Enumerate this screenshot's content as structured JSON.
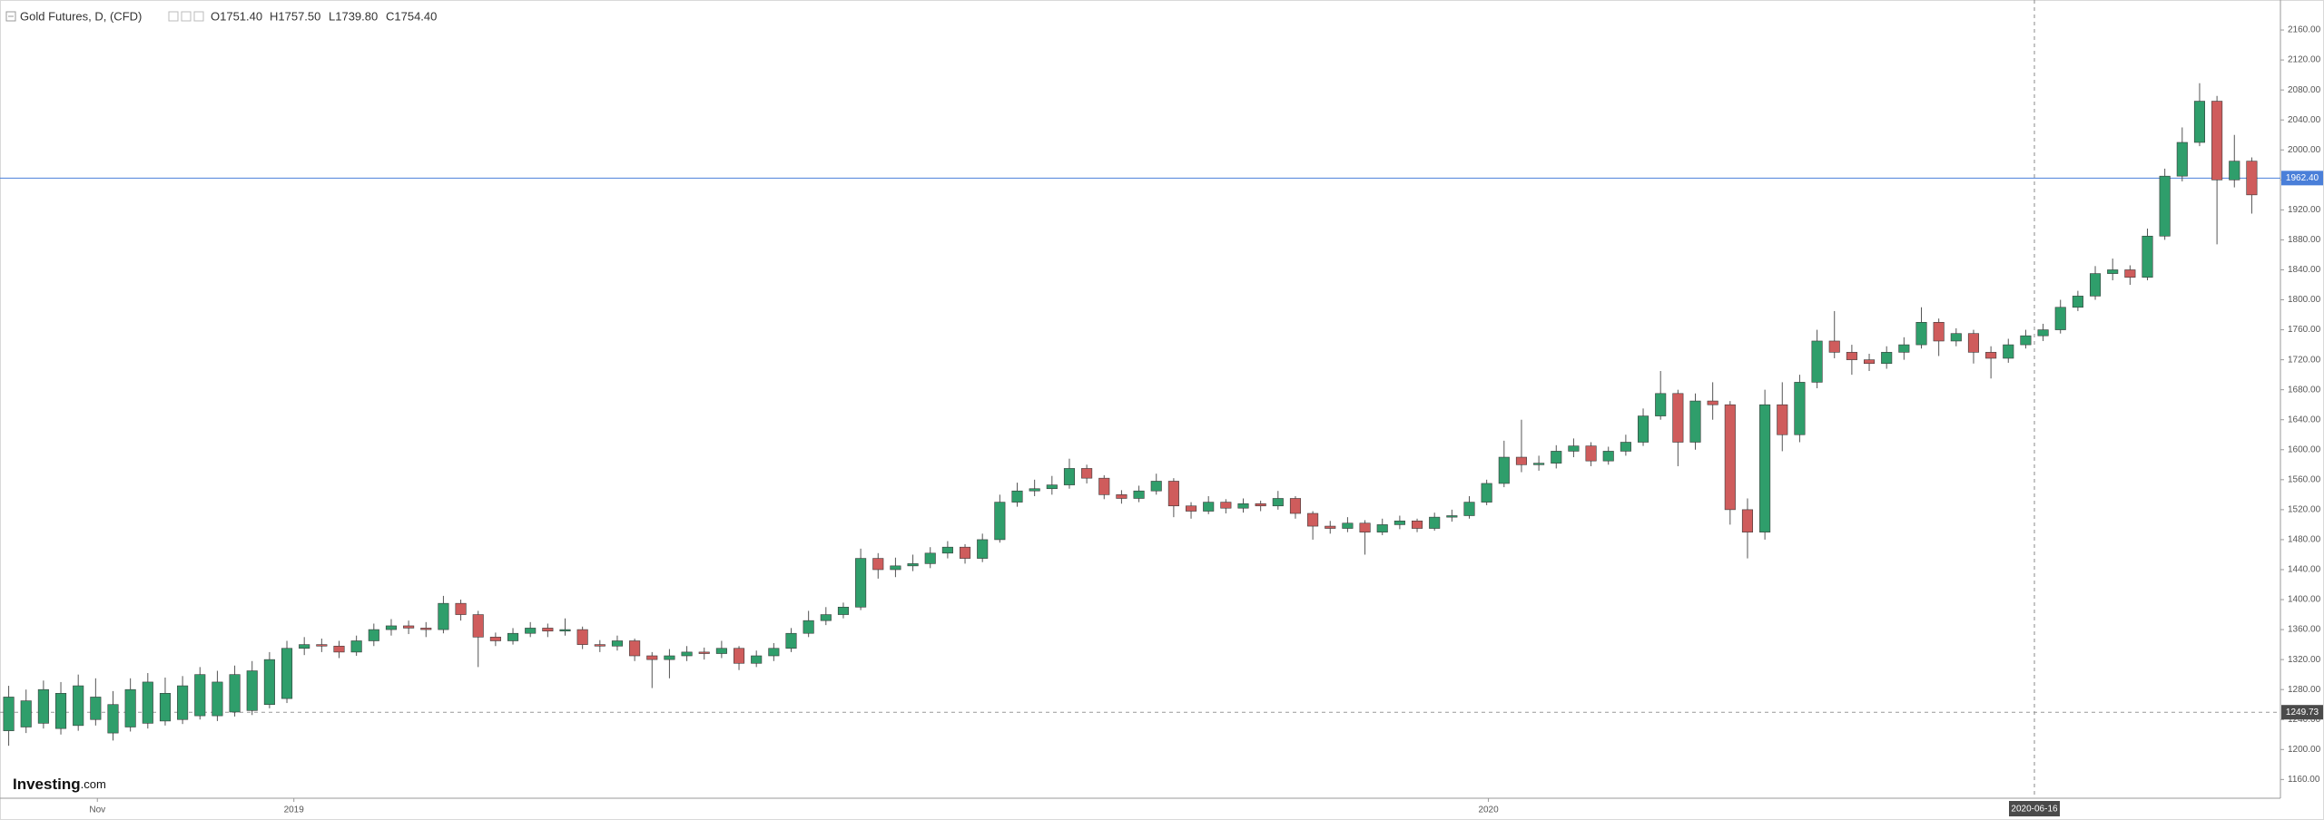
{
  "chart_data": {
    "type": "candlestick",
    "title": "Gold Futures, D, (CFD)",
    "header_values": [
      "O1751.40",
      "H1757.50",
      "L1739.80",
      "C1754.40"
    ],
    "watermark": [
      "Investing",
      ".com"
    ],
    "up_color": "#2f9e6b",
    "down_color": "#cf5c5c",
    "open": [
      1225,
      1230,
      1235,
      1228,
      1232,
      1240,
      1222,
      1230,
      1235,
      1238,
      1240,
      1245,
      1245,
      1250,
      1252,
      1260,
      1268,
      1335,
      1340,
      1338,
      1330,
      1345,
      1360,
      1365,
      1362,
      1360,
      1395,
      1380,
      1350,
      1345,
      1355,
      1362,
      1358,
      1360,
      1340,
      1338,
      1345,
      1325,
      1320,
      1325,
      1330,
      1328,
      1335,
      1315,
      1325,
      1335,
      1355,
      1372,
      1380,
      1390,
      1455,
      1440,
      1445,
      1448,
      1462,
      1470,
      1455,
      1480,
      1530,
      1545,
      1548,
      1553,
      1575,
      1562,
      1540,
      1535,
      1545,
      1558,
      1525,
      1518,
      1530,
      1522,
      1528,
      1525,
      1535,
      1515,
      1498,
      1495,
      1502,
      1490,
      1500,
      1505,
      1495,
      1510,
      1512,
      1530,
      1555,
      1590,
      1580,
      1582,
      1598,
      1605,
      1585,
      1598,
      1610,
      1645,
      1675,
      1610,
      1665,
      1660,
      1520,
      1490,
      1660,
      1620,
      1690,
      1745,
      1730,
      1720,
      1715,
      1730,
      1740,
      1770,
      1745,
      1755,
      1730,
      1722,
      1740,
      1752,
      1760,
      1790,
      1805,
      1835,
      1840,
      1830,
      1885,
      1965,
      2010,
      2065,
      1960,
      1985
    ],
    "high": [
      1285,
      1280,
      1292,
      1290,
      1300,
      1295,
      1278,
      1295,
      1302,
      1296,
      1298,
      1310,
      1305,
      1312,
      1318,
      1330,
      1345,
      1350,
      1348,
      1345,
      1352,
      1368,
      1374,
      1372,
      1370,
      1405,
      1400,
      1385,
      1356,
      1362,
      1370,
      1368,
      1375,
      1364,
      1346,
      1352,
      1348,
      1330,
      1334,
      1338,
      1336,
      1345,
      1338,
      1332,
      1342,
      1362,
      1385,
      1390,
      1396,
      1468,
      1462,
      1456,
      1460,
      1470,
      1478,
      1474,
      1488,
      1540,
      1556,
      1560,
      1565,
      1588,
      1580,
      1566,
      1546,
      1552,
      1568,
      1562,
      1530,
      1538,
      1534,
      1535,
      1532,
      1545,
      1538,
      1518,
      1505,
      1510,
      1506,
      1508,
      1512,
      1508,
      1516,
      1520,
      1538,
      1560,
      1612,
      1640,
      1592,
      1606,
      1615,
      1610,
      1604,
      1620,
      1655,
      1705,
      1680,
      1675,
      1690,
      1665,
      1535,
      1680,
      1690,
      1700,
      1760,
      1785,
      1740,
      1728,
      1738,
      1750,
      1790,
      1775,
      1762,
      1760,
      1738,
      1748,
      1760,
      1768,
      1800,
      1812,
      1845,
      1855,
      1846,
      1895,
      1975,
      2030,
      2089,
      2072,
      2020,
      1990
    ],
    "low": [
      1205,
      1222,
      1228,
      1220,
      1225,
      1232,
      1212,
      1224,
      1228,
      1232,
      1234,
      1240,
      1238,
      1244,
      1246,
      1255,
      1262,
      1326,
      1330,
      1322,
      1325,
      1338,
      1352,
      1354,
      1350,
      1355,
      1372,
      1310,
      1338,
      1340,
      1350,
      1350,
      1352,
      1334,
      1330,
      1332,
      1318,
      1282,
      1295,
      1318,
      1320,
      1322,
      1306,
      1310,
      1318,
      1330,
      1350,
      1366,
      1375,
      1386,
      1428,
      1430,
      1438,
      1442,
      1455,
      1448,
      1450,
      1476,
      1524,
      1538,
      1540,
      1548,
      1555,
      1534,
      1528,
      1530,
      1540,
      1510,
      1508,
      1514,
      1515,
      1516,
      1518,
      1520,
      1508,
      1480,
      1488,
      1490,
      1460,
      1486,
      1494,
      1490,
      1492,
      1504,
      1508,
      1526,
      1550,
      1570,
      1572,
      1575,
      1590,
      1578,
      1580,
      1592,
      1605,
      1640,
      1578,
      1600,
      1640,
      1500,
      1455,
      1480,
      1598,
      1610,
      1682,
      1722,
      1700,
      1705,
      1708,
      1720,
      1735,
      1725,
      1738,
      1715,
      1695,
      1716,
      1735,
      1745,
      1755,
      1785,
      1800,
      1826,
      1820,
      1826,
      1880,
      1958,
      2005,
      1874,
      1950,
      1915
    ],
    "close": [
      1270,
      1265,
      1280,
      1275,
      1285,
      1270,
      1260,
      1280,
      1290,
      1275,
      1285,
      1300,
      1290,
      1300,
      1305,
      1320,
      1335,
      1340,
      1338,
      1330,
      1345,
      1360,
      1365,
      1362,
      1360,
      1395,
      1380,
      1350,
      1345,
      1355,
      1362,
      1358,
      1360,
      1340,
      1338,
      1345,
      1325,
      1320,
      1325,
      1330,
      1328,
      1335,
      1315,
      1325,
      1335,
      1355,
      1372,
      1380,
      1390,
      1455,
      1440,
      1445,
      1448,
      1462,
      1470,
      1455,
      1480,
      1530,
      1545,
      1548,
      1553,
      1575,
      1562,
      1540,
      1535,
      1545,
      1558,
      1525,
      1518,
      1530,
      1522,
      1528,
      1525,
      1535,
      1515,
      1498,
      1495,
      1502,
      1490,
      1500,
      1505,
      1495,
      1510,
      1512,
      1530,
      1555,
      1590,
      1580,
      1582,
      1598,
      1605,
      1585,
      1598,
      1610,
      1645,
      1675,
      1610,
      1665,
      1660,
      1520,
      1490,
      1660,
      1620,
      1690,
      1745,
      1730,
      1720,
      1715,
      1730,
      1740,
      1770,
      1745,
      1755,
      1730,
      1722,
      1740,
      1752,
      1760,
      1790,
      1805,
      1835,
      1840,
      1830,
      1885,
      1965,
      2010,
      2065,
      1960,
      1985,
      1940
    ],
    "xlim": [
      -0.5,
      129.5
    ],
    "xticks": [
      {
        "value": 5.1,
        "label": "Nov"
      },
      {
        "value": 16.4,
        "label": "2019"
      },
      {
        "value": 85.1,
        "label": "2020"
      }
    ],
    "crosshair": {
      "value": 116.5,
      "label": "2020-06-16"
    },
    "ylim": [
      1135,
      2200
    ],
    "yticks": [
      {
        "value": 1160,
        "label": "1160.00"
      },
      {
        "value": 1200,
        "label": "1200.00"
      },
      {
        "value": 1240,
        "label": "1240.00"
      },
      {
        "value": 1280,
        "label": "1280.00"
      },
      {
        "value": 1320,
        "label": "1320.00"
      },
      {
        "value": 1360,
        "label": "1360.00"
      },
      {
        "value": 1400,
        "label": "1400.00"
      },
      {
        "value": 1440,
        "label": "1440.00"
      },
      {
        "value": 1480,
        "label": "1480.00"
      },
      {
        "value": 1520,
        "label": "1520.00"
      },
      {
        "value": 1560,
        "label": "1560.00"
      },
      {
        "value": 1600,
        "label": "1600.00"
      },
      {
        "value": 1640,
        "label": "1640.00"
      },
      {
        "value": 1680,
        "label": "1680.00"
      },
      {
        "value": 1720,
        "label": "1720.00"
      },
      {
        "value": 1760,
        "label": "1760.00"
      },
      {
        "value": 1800,
        "label": "1800.00"
      },
      {
        "value": 1840,
        "label": "1840.00"
      },
      {
        "value": 1880,
        "label": "1880.00"
      },
      {
        "value": 1920,
        "label": "1920.00"
      },
      {
        "value": 1960,
        "label": "1960.00"
      },
      {
        "value": 2000,
        "label": "2000.00"
      },
      {
        "value": 2040,
        "label": "2040.00"
      },
      {
        "value": 2080,
        "label": "2080.00"
      },
      {
        "value": 2120,
        "label": "2120.00"
      },
      {
        "value": 2160,
        "label": "2160.00"
      }
    ],
    "price_lines": [
      {
        "value": 1962.4,
        "label": "1962.40",
        "color": "#4a7fd9",
        "style": "solid"
      },
      {
        "value": 1249.73,
        "label": "1249.73",
        "color": "#4a4a4a",
        "style": "dashed"
      }
    ],
    "grid": false
  }
}
